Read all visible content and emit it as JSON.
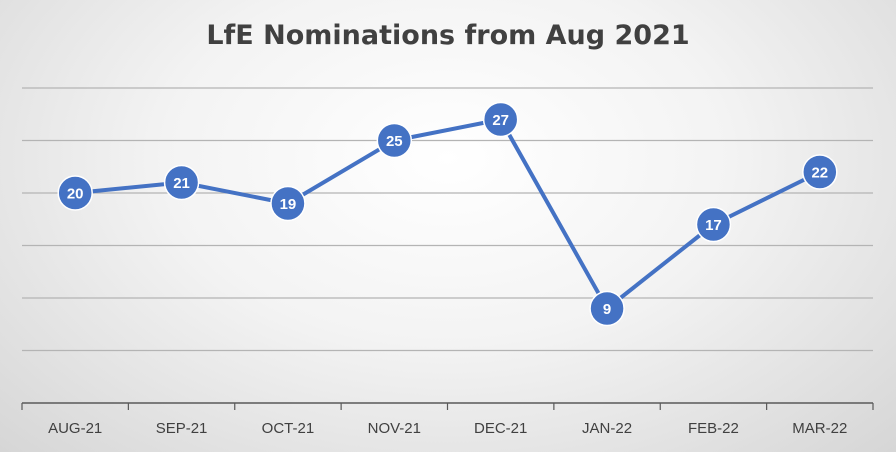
{
  "chart_data": {
    "type": "line",
    "title": "LfE Nominations from Aug 2021",
    "xlabel": "",
    "ylabel": "",
    "categories": [
      "AUG-21",
      "SEP-21",
      "OCT-21",
      "NOV-21",
      "DEC-21",
      "JAN-22",
      "FEB-22",
      "MAR-22"
    ],
    "series": [
      {
        "values": [
          20,
          21,
          19,
          25,
          27,
          9,
          17,
          22
        ]
      }
    ],
    "ylim": [
      0,
      30
    ],
    "grid": true,
    "data_labels": true,
    "legend": "none",
    "line_color": "#4472C4",
    "label_color": "#FFFFFF"
  }
}
